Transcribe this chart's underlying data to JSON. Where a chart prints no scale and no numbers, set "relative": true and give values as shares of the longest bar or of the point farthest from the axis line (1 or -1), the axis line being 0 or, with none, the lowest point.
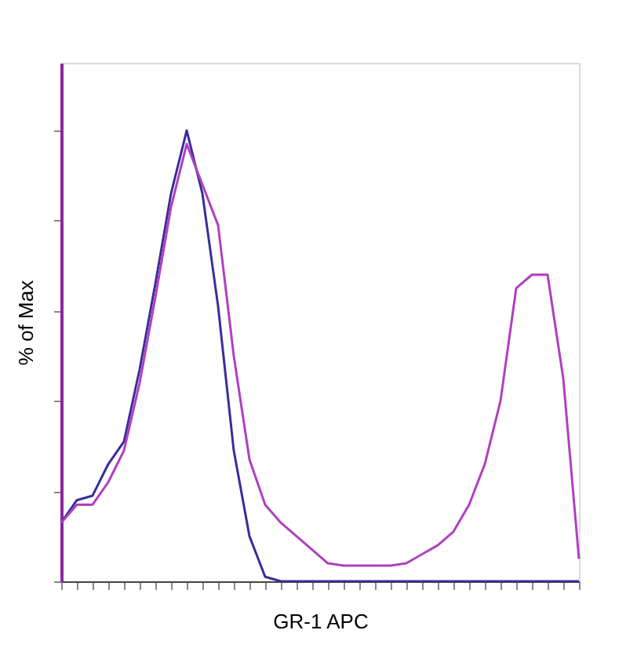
{
  "chart_data": {
    "type": "line",
    "xlabel": "GR-1 APC",
    "ylabel": "% of Max",
    "relative": true,
    "tick_labels": false,
    "marker": "none",
    "line_style": "solid",
    "categories": [
      null,
      null,
      null,
      null,
      null,
      null,
      null,
      null,
      null,
      null,
      null,
      null,
      null,
      null,
      null,
      null,
      null,
      null,
      null,
      null,
      null,
      null,
      null,
      null,
      null,
      null,
      null,
      null,
      null,
      null,
      null,
      null,
      null,
      null
    ],
    "series": [
      {
        "color": "#3a2d9a",
        "values": [
          0.13,
          0.18,
          0.19,
          0.26,
          0.31,
          0.47,
          0.66,
          0.86,
          1.0,
          0.86,
          0.61,
          0.29,
          0.1,
          0.01,
          0,
          0,
          0,
          0,
          0,
          0,
          0,
          0,
          0,
          0,
          0,
          0,
          0,
          0,
          0,
          0,
          0,
          0,
          0,
          0
        ]
      },
      {
        "color": "#b040c0",
        "values": [
          0.13,
          0.17,
          0.17,
          0.22,
          0.29,
          0.44,
          0.63,
          0.83,
          0.97,
          0.88,
          0.79,
          0.5,
          0.27,
          0.17,
          0.13,
          0.1,
          0.07,
          0.04,
          0.035,
          0.035,
          0.035,
          0.035,
          0.04,
          0.06,
          0.08,
          0.11,
          0.17,
          0.26,
          0.4,
          0.65,
          0.68,
          0.68,
          0.45,
          0.05
        ]
      }
    ]
  }
}
